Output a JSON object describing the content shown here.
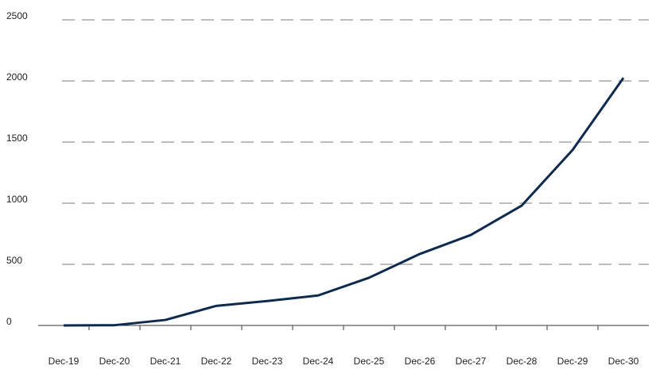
{
  "chart_data": {
    "type": "line",
    "categories": [
      "Dec-19",
      "Dec-20",
      "Dec-21",
      "Dec-22",
      "Dec-23",
      "Dec-24",
      "Dec-25",
      "Dec-26",
      "Dec-27",
      "Dec-28",
      "Dec-29",
      "Dec-30"
    ],
    "values": [
      0,
      2,
      45,
      160,
      200,
      245,
      390,
      585,
      740,
      980,
      1435,
      2025
    ],
    "color": "#0d2a4f",
    "ylim": [
      0,
      2500
    ],
    "yticks": [
      0,
      500,
      1000,
      1500,
      2000,
      2500
    ],
    "grid": true
  }
}
